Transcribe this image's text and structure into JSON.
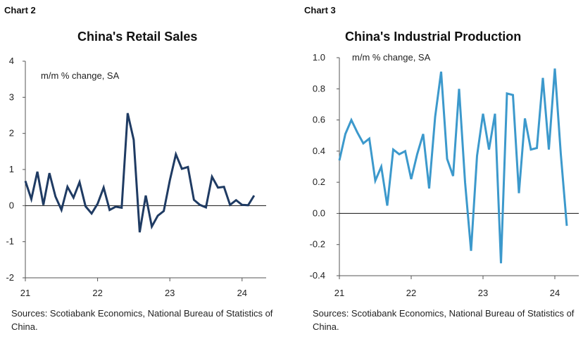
{
  "chart_data": [
    {
      "type": "line",
      "label": "Chart 2",
      "title": "China's Retail Sales",
      "subtitle": "m/m % change, SA",
      "color": "#1f3b63",
      "ylim": [
        -2,
        4
      ],
      "yticks": [
        -2,
        -1,
        0,
        1,
        2,
        3,
        4
      ],
      "xticks": [
        {
          "label": "21",
          "t": 0
        },
        {
          "label": "22",
          "t": 12
        },
        {
          "label": "23",
          "t": 24
        },
        {
          "label": "24",
          "t": 36
        }
      ],
      "xlim": [
        0,
        40
      ],
      "grid": false,
      "source": "Sources: Scotiabank Economics, National Bureau of Statistics of China.",
      "series": [
        {
          "x": [
            0,
            1,
            2,
            3,
            4,
            5,
            6,
            7,
            8,
            9,
            10,
            11,
            12,
            13,
            14,
            15,
            16,
            17,
            18,
            19,
            20,
            21,
            22,
            23,
            24,
            25,
            26,
            27,
            28,
            29,
            30,
            31,
            32,
            33,
            34,
            35,
            36,
            37,
            38
          ],
          "values": [
            0.68,
            0.18,
            0.94,
            0.02,
            0.9,
            0.25,
            -0.12,
            0.52,
            0.22,
            0.65,
            -0.02,
            -0.22,
            0.05,
            0.5,
            -0.12,
            -0.03,
            -0.06,
            2.56,
            1.82,
            -0.74,
            0.28,
            -0.58,
            -0.28,
            -0.15,
            0.7,
            1.42,
            1.02,
            1.07,
            0.16,
            0.02,
            -0.05,
            0.8,
            0.5,
            0.52,
            0.02,
            0.15,
            0.02,
            0.01,
            0.28
          ]
        }
      ]
    },
    {
      "type": "line",
      "label": "Chart 3",
      "title": "China's Industrial Production",
      "subtitle": "m/m % change, SA",
      "color": "#3c99cc",
      "ylim": [
        -0.4,
        1.0
      ],
      "yticks": [
        "-0.4",
        "-0.2",
        "0.0",
        "0.2",
        "0.4",
        "0.6",
        "0.8",
        "1.0"
      ],
      "xticks": [
        {
          "label": "21",
          "t": 0
        },
        {
          "label": "22",
          "t": 12
        },
        {
          "label": "23",
          "t": 24
        },
        {
          "label": "24",
          "t": 36
        }
      ],
      "xlim": [
        0,
        40
      ],
      "grid": false,
      "source": "Sources: Scotiabank Economics, National Bureau of Statistics of China.",
      "series": [
        {
          "x": [
            0,
            1,
            2,
            3,
            4,
            5,
            6,
            7,
            8,
            9,
            10,
            11,
            12,
            13,
            14,
            15,
            16,
            17,
            18,
            19,
            20,
            21,
            22,
            23,
            24,
            25,
            26,
            27,
            28,
            29,
            30,
            31,
            32,
            33,
            34,
            35,
            36,
            37,
            38
          ],
          "values": [
            0.34,
            0.51,
            0.6,
            0.52,
            0.45,
            0.48,
            0.21,
            0.3,
            0.05,
            0.41,
            0.38,
            0.4,
            0.22,
            0.38,
            0.51,
            0.16,
            0.62,
            0.91,
            0.35,
            0.24,
            0.8,
            0.2,
            -0.24,
            0.37,
            0.64,
            0.41,
            0.64,
            -0.32,
            0.77,
            0.76,
            0.13,
            0.61,
            0.41,
            0.42,
            0.87,
            0.41,
            0.93,
            0.38,
            -0.08
          ]
        }
      ]
    }
  ]
}
